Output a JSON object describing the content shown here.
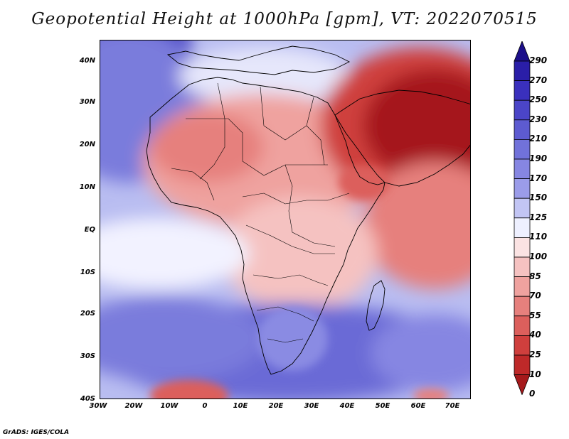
{
  "title": "Geopotential Height at 1000hPa [gpm], VT: 2022070515",
  "credit": "GrADS: IGES/COLA",
  "lat_ticks": [
    "40N",
    "30N",
    "20N",
    "10N",
    "EQ",
    "10S",
    "20S",
    "30S",
    "40S"
  ],
  "lon_ticks": [
    "30W",
    "20W",
    "10W",
    "0",
    "10E",
    "20E",
    "30E",
    "40E",
    "50E",
    "60E",
    "70E"
  ],
  "colorbar": {
    "labels": [
      "290",
      "270",
      "250",
      "230",
      "210",
      "190",
      "170",
      "150",
      "125",
      "110",
      "100",
      "85",
      "70",
      "55",
      "40",
      "25",
      "10",
      "0"
    ],
    "colors": [
      "#1c0f8a",
      "#2a1ea8",
      "#3a30bd",
      "#4b45c8",
      "#5d5bd1",
      "#7172da",
      "#8686e2",
      "#9b9ce9",
      "#c2c5f4",
      "#eef0ff",
      "#fbe3e3",
      "#f5c2c1",
      "#efa29f",
      "#e6807d",
      "#dc5f5c",
      "#cf3f3d",
      "#be2929",
      "#a5191b"
    ]
  },
  "map": {
    "region": "Africa",
    "lon_range": [
      "30W",
      "75E"
    ],
    "lat_range": [
      "40S",
      "45N"
    ]
  }
}
